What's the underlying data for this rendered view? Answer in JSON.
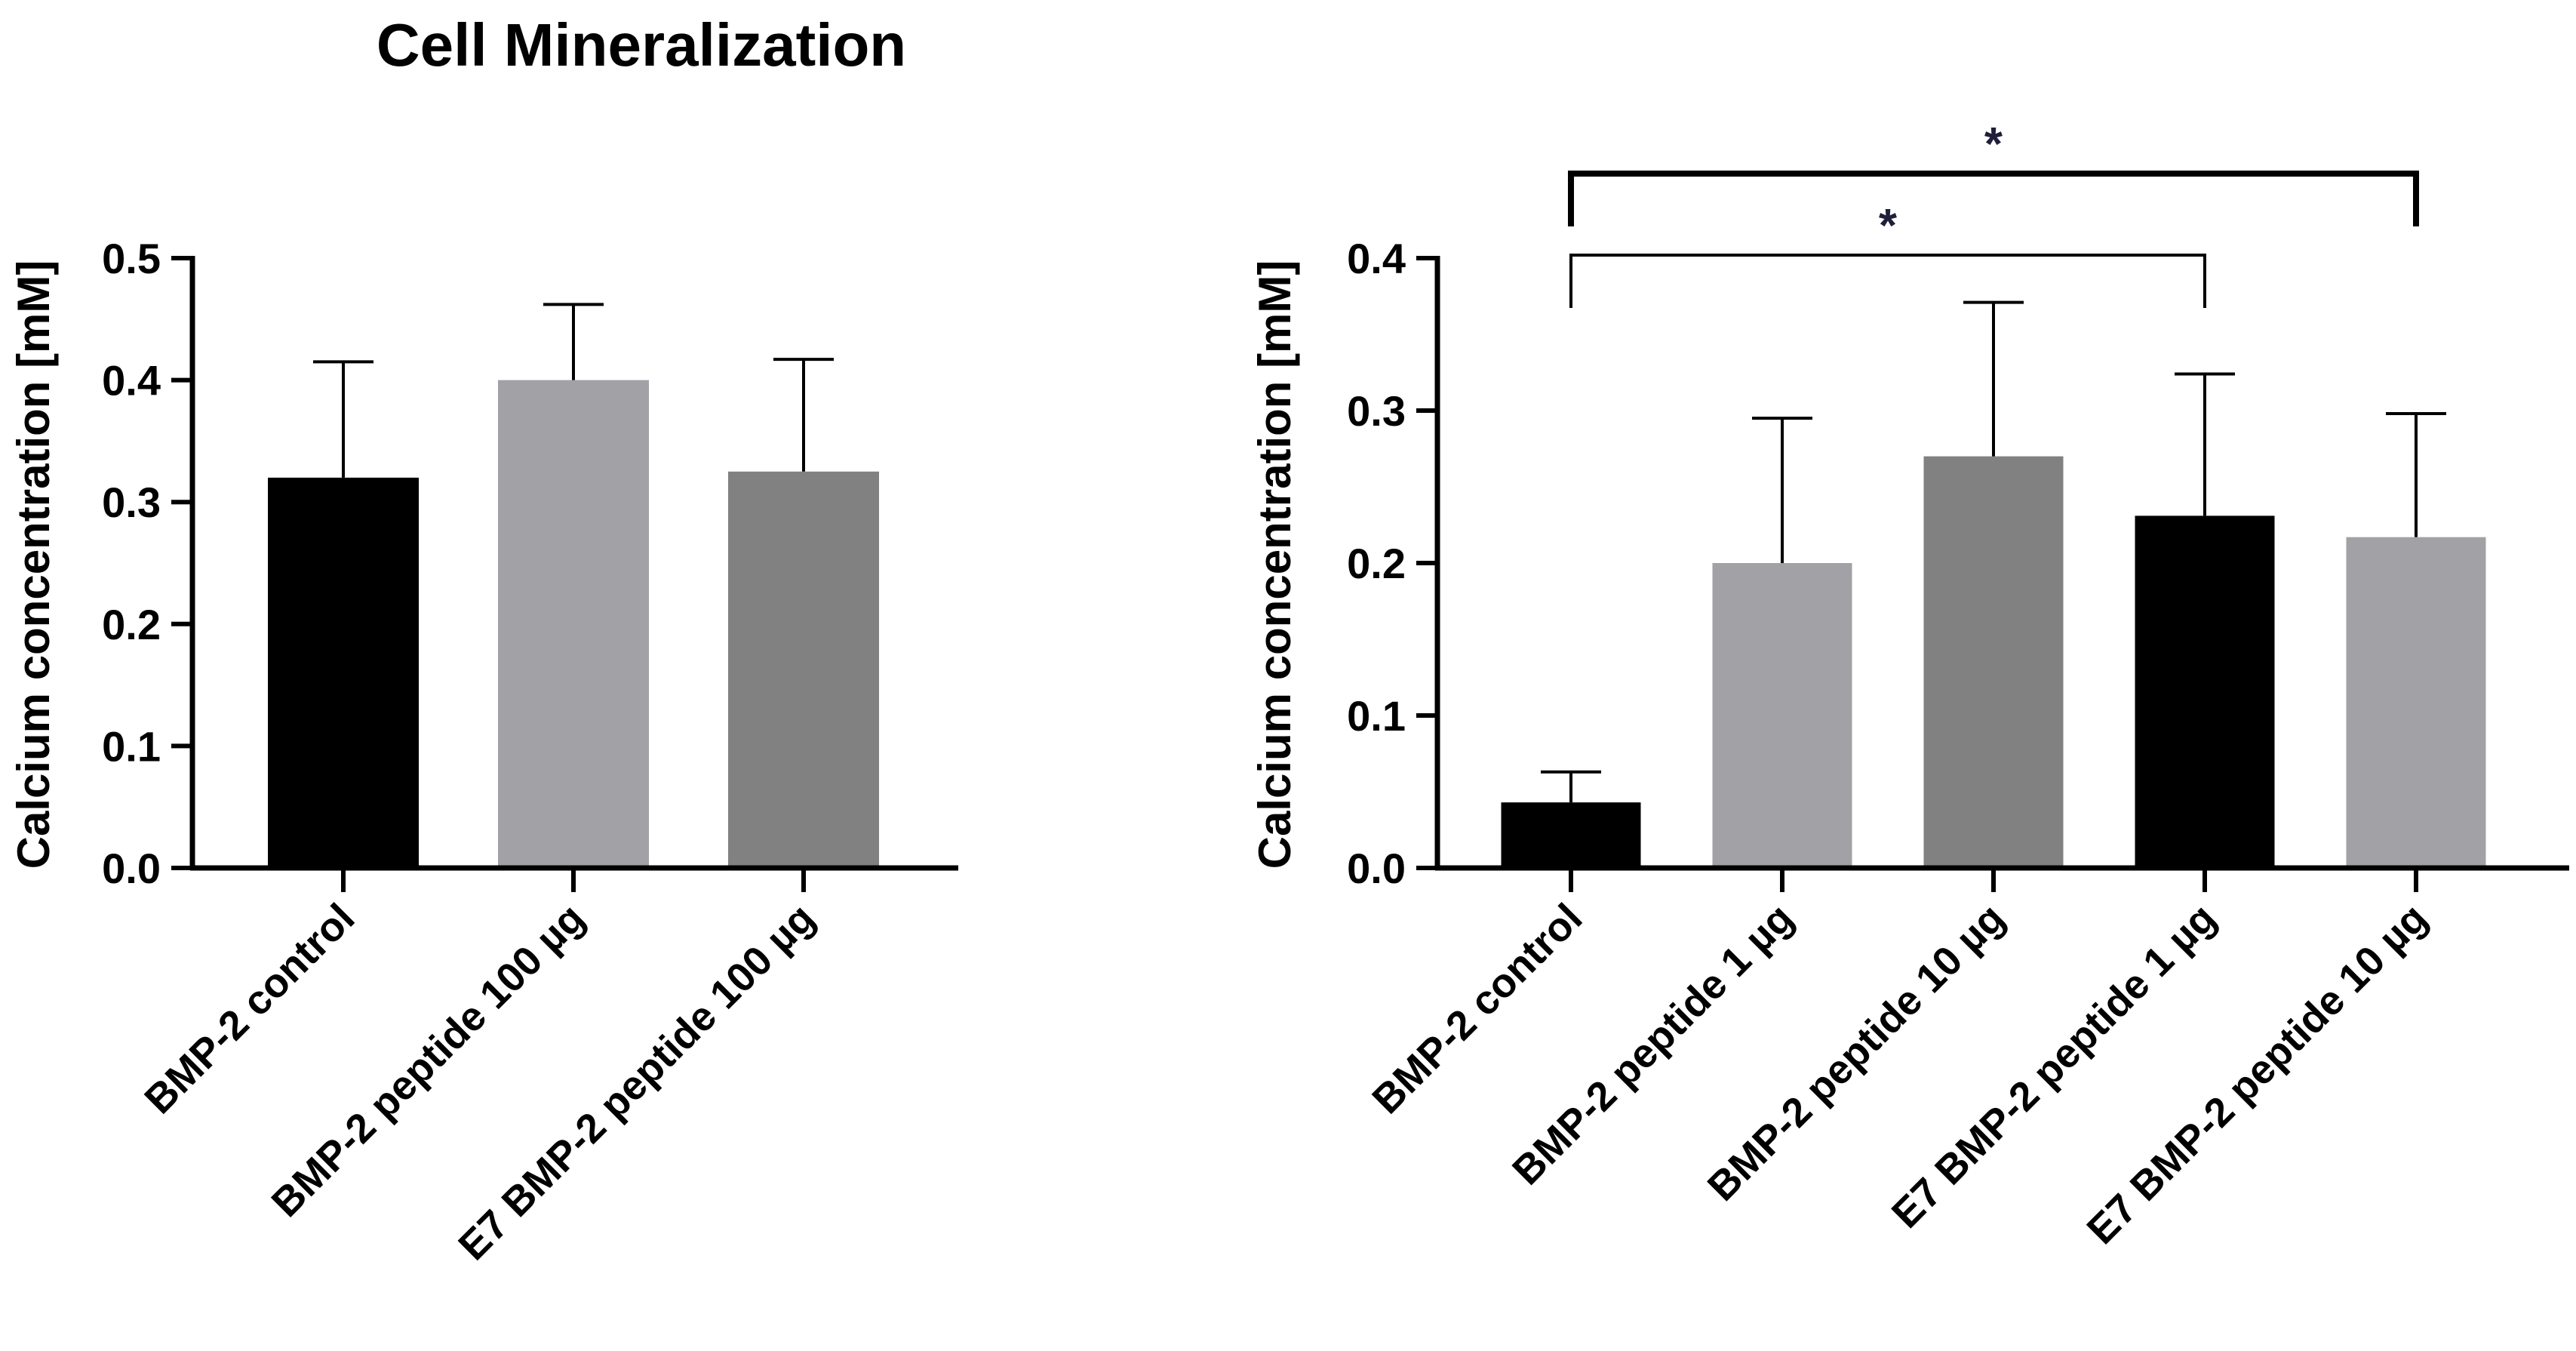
{
  "title": "Cell Mineralization",
  "chart_data": [
    {
      "type": "bar",
      "categories": [
        "BMP-2 control",
        "BMP-2 peptide 100 µg",
        "E7 BMP-2 peptide 100 µg"
      ],
      "values": [
        0.32,
        0.4,
        0.325
      ],
      "errors": [
        0.095,
        0.062,
        0.092
      ],
      "colors": [
        "#000000",
        "#a2a1a6",
        "#818181"
      ],
      "ylabel": "Calcium concentration [mM]",
      "xlabel": "",
      "ylim": [
        0,
        0.5
      ],
      "yticks": [
        "0.0",
        "0.1",
        "0.2",
        "0.3",
        "0.4",
        "0.5"
      ],
      "significance": []
    },
    {
      "type": "bar",
      "categories": [
        "BMP-2 control",
        "BMP-2 peptide 1 µg",
        "BMP-2 peptide 10 µg",
        "E7 BMP-2 peptide 1 µg",
        "E7 BMP-2 peptide 10 µg"
      ],
      "values": [
        0.043,
        0.2,
        0.27,
        0.231,
        0.217
      ],
      "errors": [
        0.02,
        0.095,
        0.101,
        0.093,
        0.081
      ],
      "colors": [
        "#000000",
        "#a2a1a6",
        "#818181",
        "#000000",
        "#a2a1a6"
      ],
      "ylabel": "Calcium concentration [mM]",
      "xlabel": "",
      "ylim": [
        0,
        0.4
      ],
      "yticks": [
        "0.0",
        "0.1",
        "0.2",
        "0.3",
        "0.4"
      ],
      "significance": [
        {
          "from": 0,
          "to": 3,
          "label": "*"
        },
        {
          "from": 0,
          "to": 4,
          "label": "*"
        }
      ]
    }
  ]
}
